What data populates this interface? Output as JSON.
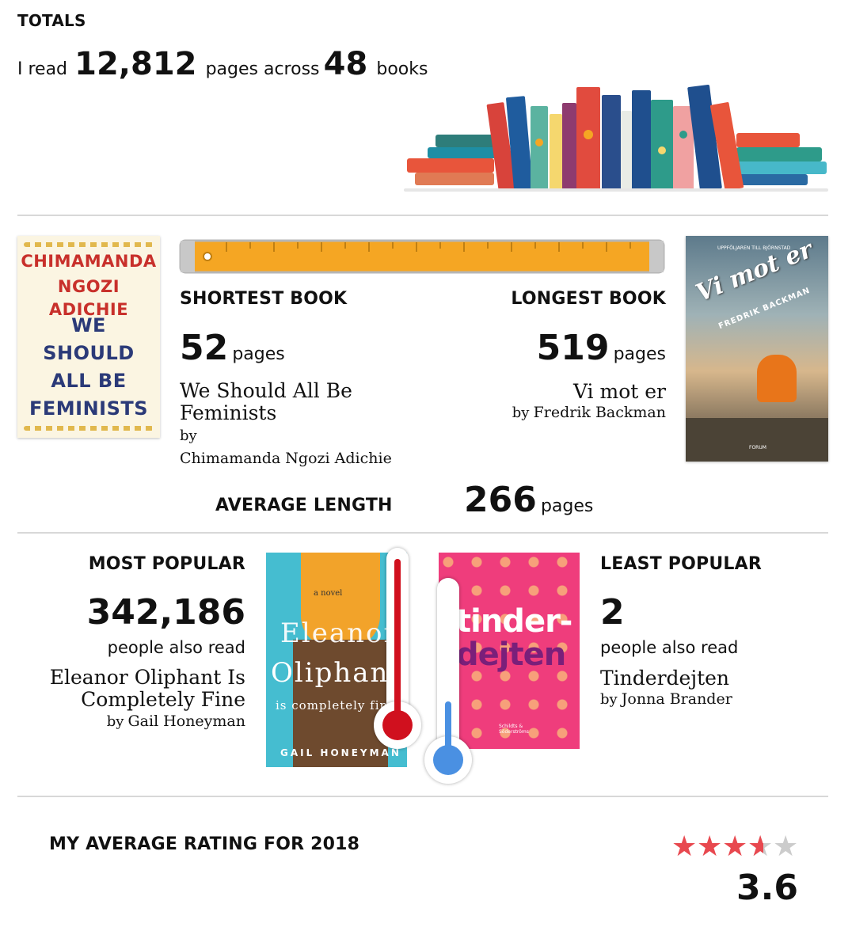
{
  "totals": {
    "heading": "TOTALS",
    "prefix": "I read",
    "pages": "12,812",
    "middle": "pages across",
    "books": "48",
    "suffix": "books"
  },
  "length": {
    "shortest": {
      "label": "SHORTEST BOOK",
      "pages": "52",
      "unit": "pages",
      "title_line1": "We Should All Be",
      "title_line2": "Feminists",
      "by": "by",
      "author": "Chimamanda Ngozi Adichie",
      "cover": {
        "author_line1": "CHIMAMANDA",
        "author_line2": "NGOZI ADICHIE",
        "title_lines": [
          "WE",
          "SHOULD",
          "ALL BE",
          "FEMINISTS"
        ]
      }
    },
    "longest": {
      "label": "LONGEST BOOK",
      "pages": "519",
      "unit": "pages",
      "title": "Vi mot er",
      "by": "by",
      "author": "Fredrik Backman",
      "cover": {
        "top_text": "UPPFÖLJAREN TILL BJÖRNSTAD",
        "title": "Vi mot er",
        "author": "FREDRIK BACKMAN",
        "publisher": "FORUM"
      }
    },
    "average": {
      "label": "AVERAGE LENGTH",
      "pages": "266",
      "unit": "pages"
    }
  },
  "popularity": {
    "most": {
      "label": "MOST POPULAR",
      "count": "342,186",
      "caption": "people also read",
      "title_line1": "Eleanor Oliphant Is",
      "title_line2": "Completely Fine",
      "by": "by",
      "author": "Gail Honeyman",
      "cover": {
        "small": "a novel",
        "line1": "Eleanor",
        "line2": "Oliphant",
        "line3": "is completely fine",
        "author": "GAIL HONEYMAN"
      }
    },
    "least": {
      "label": "LEAST POPULAR",
      "count": "2",
      "caption": "people also read",
      "title": "Tinderdejten",
      "by": "by",
      "author": "Jonna Brander",
      "cover": {
        "line1": "tinder-",
        "line2": "dejten",
        "publisher": "Schildts & Söderströms"
      }
    }
  },
  "rating": {
    "label": "MY AVERAGE RATING FOR 2018",
    "value": "3.6",
    "stars_filled": 3.6,
    "stars_total": 5,
    "star_color": "#e8484f",
    "star_empty_color": "#cccccc"
  },
  "colors": {
    "divider": "#d8d8d8",
    "thermo_hot": "#d0101e",
    "thermo_cold": "#4a90e2",
    "ruler": "#f5a623"
  }
}
